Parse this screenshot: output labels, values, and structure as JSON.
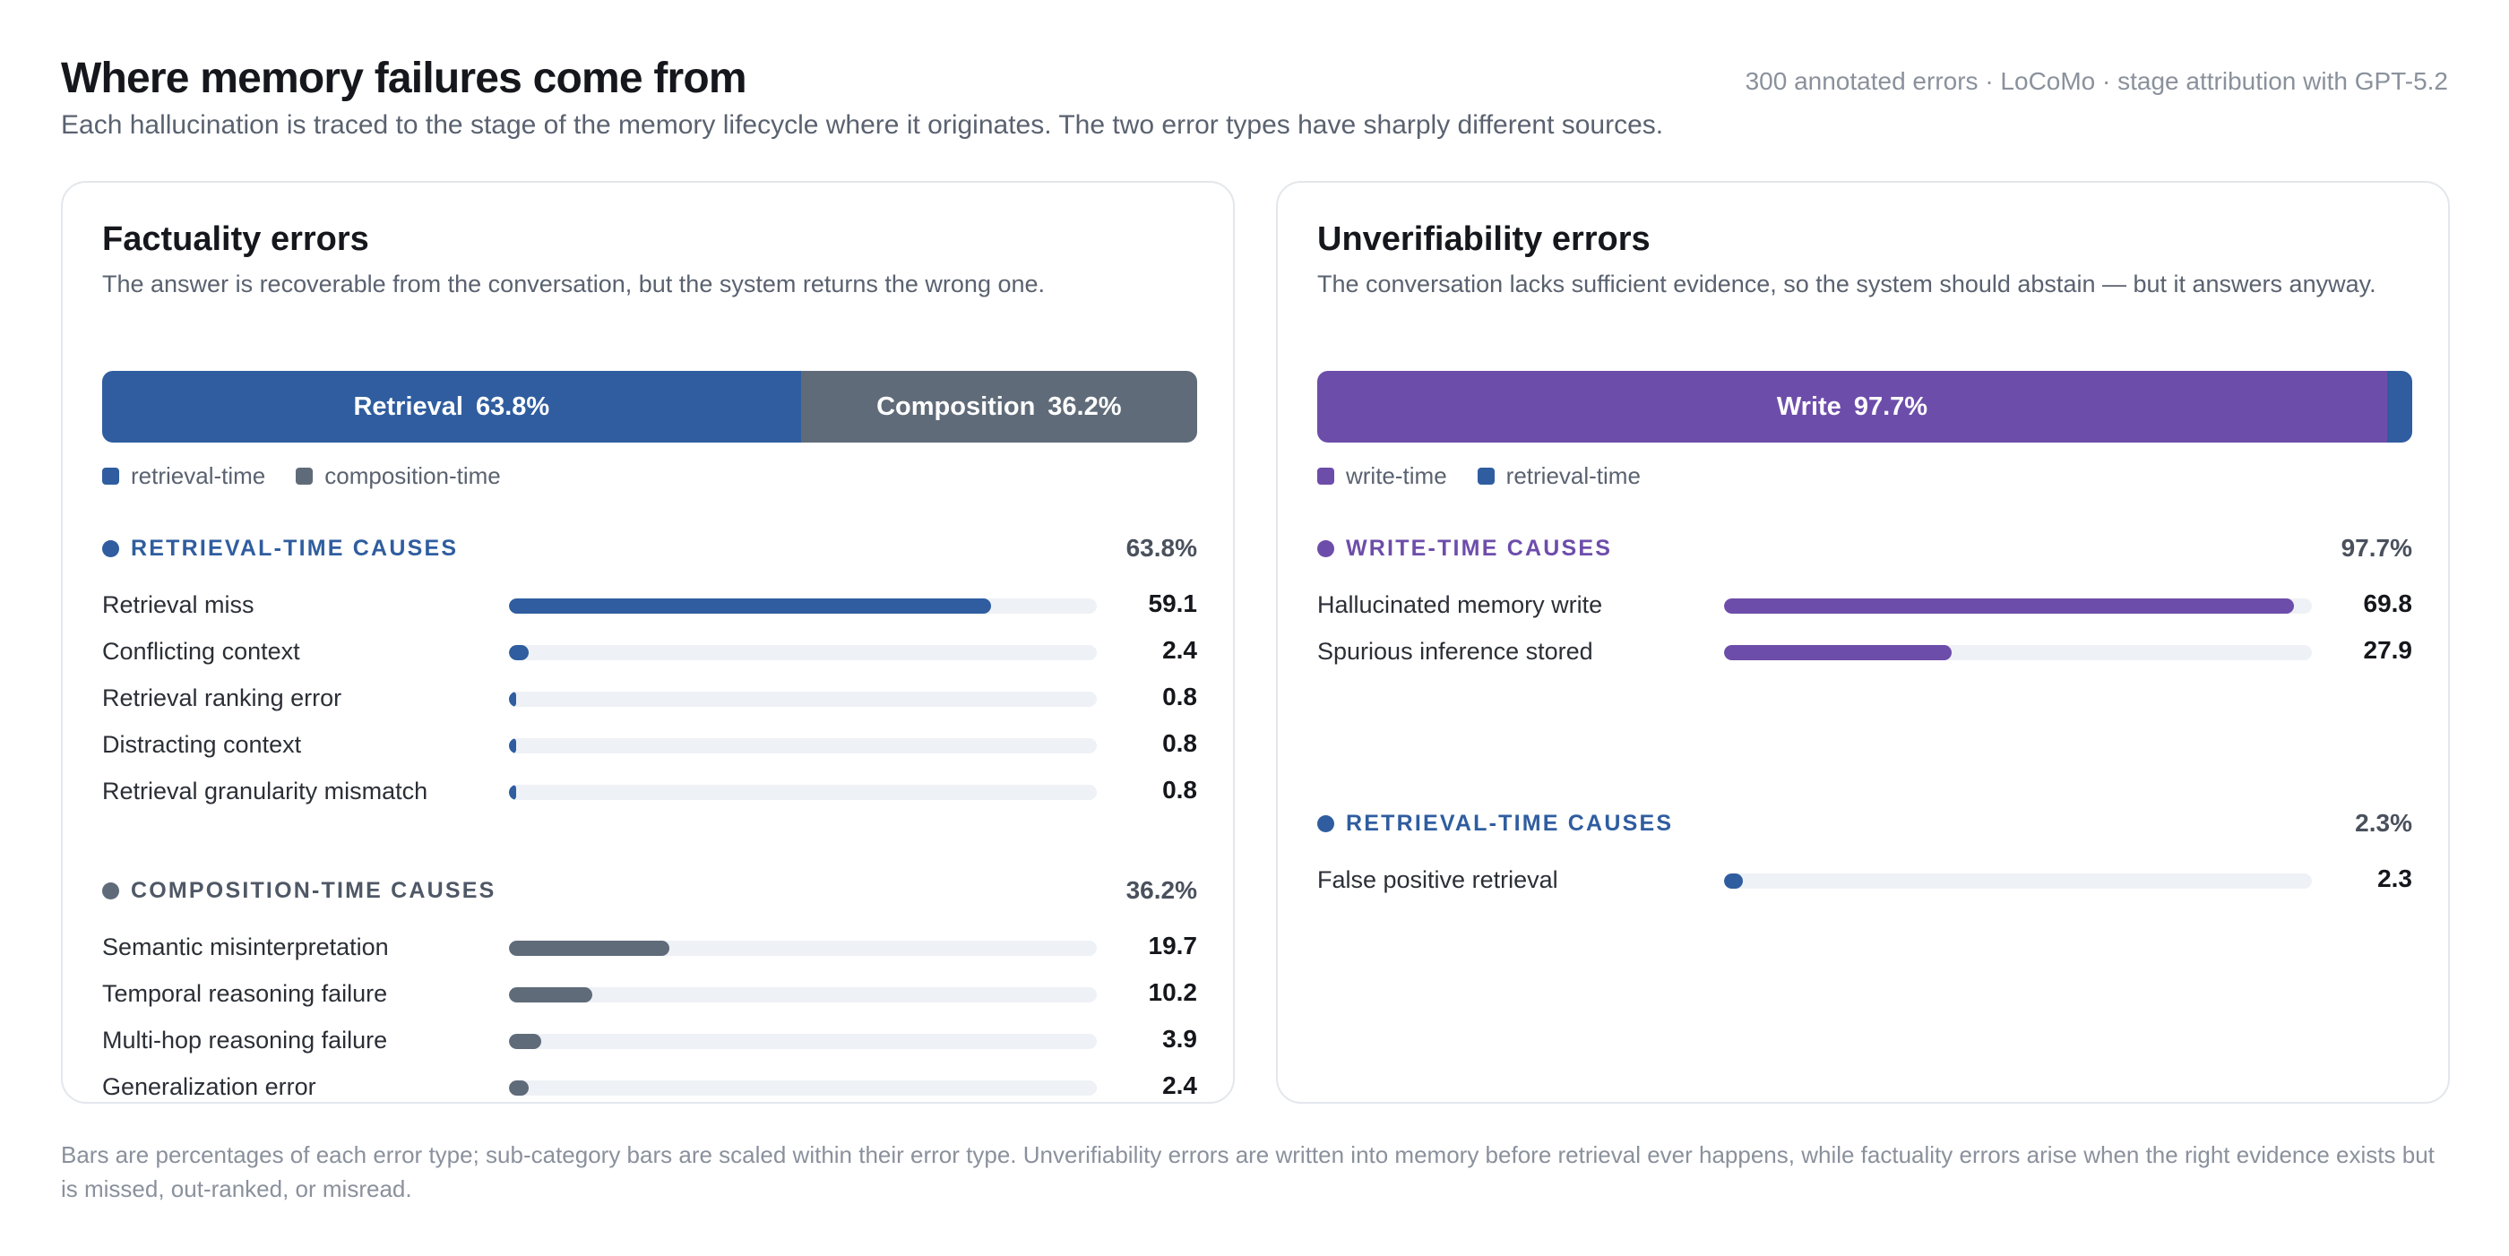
{
  "header": {
    "title": "Where memory failures come from",
    "subtitle": "Each hallucination is traced to the stage of the memory lifecycle where it originates. The two error types have sharply different sources.",
    "meta": "300 annotated errors · LoCoMo · stage attribution with GPT-5.2"
  },
  "colors": {
    "retrieval": "#2f5d9f",
    "composition": "#5f6b79",
    "write": "#6d4daa",
    "track": "#eef1f5"
  },
  "panels": [
    {
      "title": "Factuality errors",
      "description": "The answer is recoverable from the conversation, but the system returns the wrong one.",
      "stack": [
        {
          "name": "Retrieval",
          "pct_label": "63.8%",
          "value": 63.8,
          "color": "#2f5d9f",
          "show_label": true
        },
        {
          "name": "Composition",
          "pct_label": "36.2%",
          "value": 36.2,
          "color": "#5f6b79",
          "show_label": true
        }
      ],
      "legend": [
        {
          "label": "retrieval-time",
          "color": "#2f5d9f"
        },
        {
          "label": "composition-time",
          "color": "#5f6b79"
        }
      ],
      "groups": [
        {
          "label": "RETRIEVAL-TIME CAUSES",
          "pct": "63.8%",
          "color": "#2f5d9f",
          "label_color": "#2f5d9f",
          "items": [
            {
              "label": "Retrieval miss",
              "value": 59.1,
              "value_label": "59.1"
            },
            {
              "label": "Conflicting context",
              "value": 2.4,
              "value_label": "2.4"
            },
            {
              "label": "Retrieval ranking error",
              "value": 0.8,
              "value_label": "0.8"
            },
            {
              "label": "Distracting context",
              "value": 0.8,
              "value_label": "0.8"
            },
            {
              "label": "Retrieval granularity mismatch",
              "value": 0.8,
              "value_label": "0.8"
            }
          ]
        },
        {
          "label": "COMPOSITION-TIME CAUSES",
          "pct": "36.2%",
          "color": "#5f6b79",
          "label_color": "#4f5866",
          "items": [
            {
              "label": "Semantic misinterpretation",
              "value": 19.7,
              "value_label": "19.7"
            },
            {
              "label": "Temporal reasoning failure",
              "value": 10.2,
              "value_label": "10.2"
            },
            {
              "label": "Multi-hop reasoning failure",
              "value": 3.9,
              "value_label": "3.9"
            },
            {
              "label": "Generalization error",
              "value": 2.4,
              "value_label": "2.4"
            }
          ]
        }
      ]
    },
    {
      "title": "Unverifiability errors",
      "description": "The conversation lacks sufficient evidence, so the system should abstain — but it answers anyway.",
      "stack": [
        {
          "name": "Write",
          "pct_label": "97.7%",
          "value": 97.7,
          "color": "#6d4daa",
          "show_label": true
        },
        {
          "name": "",
          "pct_label": "",
          "value": 2.3,
          "color": "#2f5d9f",
          "show_label": false
        }
      ],
      "legend": [
        {
          "label": "write-time",
          "color": "#6d4daa"
        },
        {
          "label": "retrieval-time",
          "color": "#2f5d9f"
        }
      ],
      "groups": [
        {
          "label": "WRITE-TIME CAUSES",
          "pct": "97.7%",
          "color": "#6d4daa",
          "label_color": "#6d4daa",
          "items": [
            {
              "label": "Hallucinated memory write",
              "value": 69.8,
              "value_label": "69.8"
            },
            {
              "label": "Spurious inference stored",
              "value": 27.9,
              "value_label": "27.9"
            }
          ]
        },
        {
          "label": "RETRIEVAL-TIME CAUSES",
          "pct": "2.3%",
          "color": "#2f5d9f",
          "label_color": "#2f5d9f",
          "items": [
            {
              "label": "False positive retrieval",
              "value": 2.3,
              "value_label": "2.3"
            }
          ]
        }
      ]
    }
  ],
  "footnote": "Bars are percentages of each error type; sub-category bars are scaled within their error type. Unverifiability errors are written into memory before retrieval ever happens, while factuality errors arise when the right evidence exists but is missed, out-ranked, or misread.",
  "chart_data": [
    {
      "type": "bar",
      "title": "Factuality errors",
      "stacked_split": {
        "categories": [
          "Retrieval",
          "Composition"
        ],
        "values": [
          63.8,
          36.2
        ]
      },
      "groups": [
        {
          "name": "RETRIEVAL-TIME CAUSES",
          "total": 63.8,
          "categories": [
            "Retrieval miss",
            "Conflicting context",
            "Retrieval ranking error",
            "Distracting context",
            "Retrieval granularity mismatch"
          ],
          "values": [
            59.1,
            2.4,
            0.8,
            0.8,
            0.8
          ]
        },
        {
          "name": "COMPOSITION-TIME CAUSES",
          "total": 36.2,
          "categories": [
            "Semantic misinterpretation",
            "Temporal reasoning failure",
            "Multi-hop reasoning failure",
            "Generalization error"
          ],
          "values": [
            19.7,
            10.2,
            3.9,
            2.4
          ]
        }
      ]
    },
    {
      "type": "bar",
      "title": "Unverifiability errors",
      "stacked_split": {
        "categories": [
          "Write",
          "retrieval-time"
        ],
        "values": [
          97.7,
          2.3
        ]
      },
      "groups": [
        {
          "name": "WRITE-TIME CAUSES",
          "total": 97.7,
          "categories": [
            "Hallucinated memory write",
            "Spurious inference stored"
          ],
          "values": [
            69.8,
            27.9
          ]
        },
        {
          "name": "RETRIEVAL-TIME CAUSES",
          "total": 2.3,
          "categories": [
            "False positive retrieval"
          ],
          "values": [
            2.3
          ]
        }
      ]
    }
  ]
}
